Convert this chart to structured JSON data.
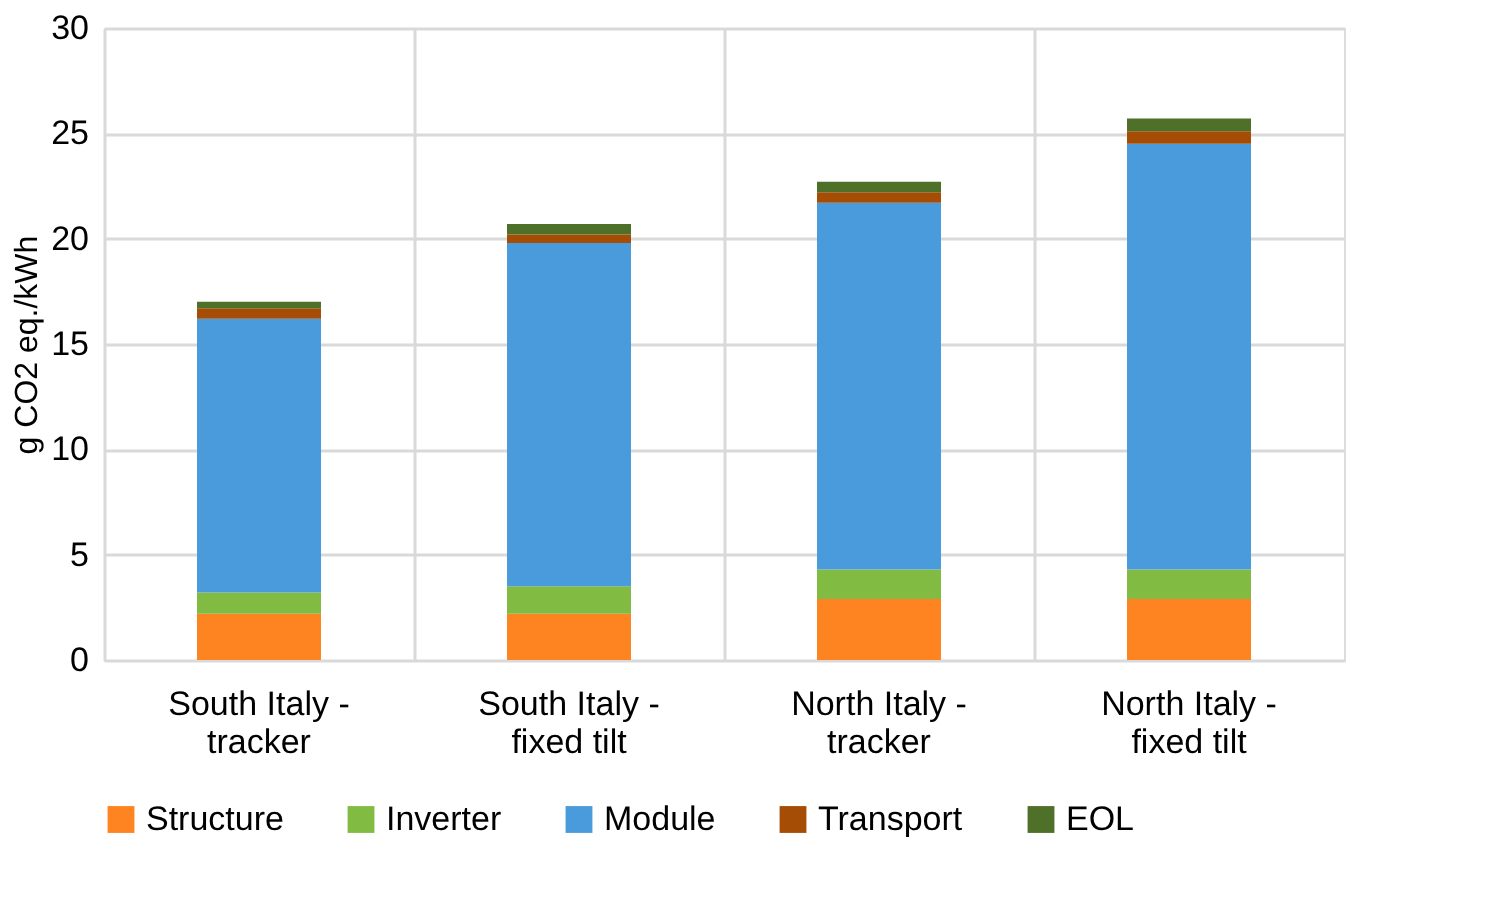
{
  "chart_data": {
    "type": "bar",
    "stacked": true,
    "ylabel": "g CO2 eq./kWh",
    "categories": [
      "South Italy - tracker",
      "South Italy - fixed tilt",
      "North Italy - tracker",
      "North Italy - fixed tilt"
    ],
    "series": [
      {
        "name": "Structure",
        "color": "#fd8421",
        "values": [
          2.2,
          2.2,
          2.9,
          2.9
        ]
      },
      {
        "name": "Inverter",
        "color": "#82bb42",
        "values": [
          1.0,
          1.3,
          1.4,
          1.4
        ]
      },
      {
        "name": "Module",
        "color": "#4a9bdb",
        "values": [
          13.0,
          16.3,
          17.4,
          20.2
        ]
      },
      {
        "name": "Transport",
        "color": "#a64d05",
        "values": [
          0.5,
          0.4,
          0.5,
          0.6
        ]
      },
      {
        "name": "EOL",
        "color": "#4e7028",
        "values": [
          0.3,
          0.5,
          0.5,
          0.6
        ]
      }
    ],
    "ylim": [
      0,
      30
    ],
    "yticks": [
      0,
      5,
      10,
      15,
      20,
      25,
      30
    ],
    "grid": true,
    "legend": "bottom"
  }
}
